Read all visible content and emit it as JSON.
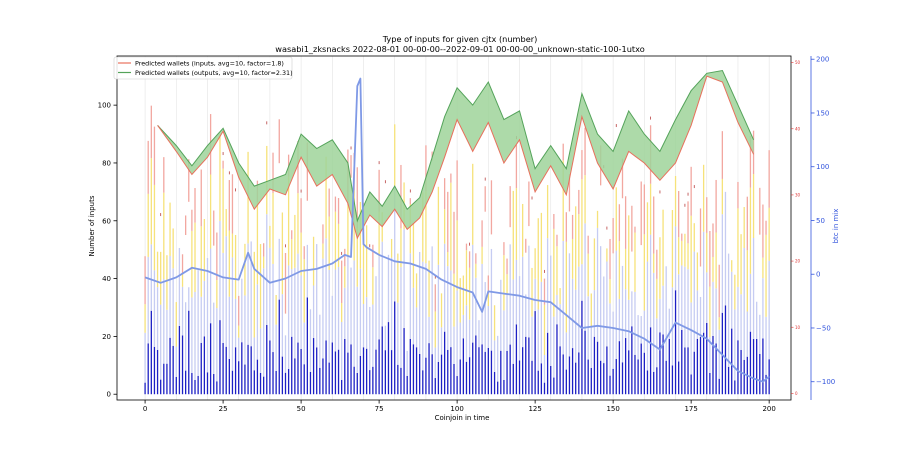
{
  "title": "Type of inputs for given cjtx (number)",
  "subtitle": "wasabi1_zksnacks 2022-08-01 00-00-00--2022-09-01 00-00-00_unknown-static-100-1utxo",
  "chart_data": {
    "type": "bar",
    "xlabel": "Coinjoin in time",
    "ylabel": "Number of inputs",
    "y2label": "btc in mix",
    "xlim": [
      -9,
      207
    ],
    "ylim": [
      -2,
      117
    ],
    "y2lim": [
      -117,
      203
    ],
    "y3lim": [
      -1,
      51
    ],
    "xticks": [
      0,
      25,
      50,
      75,
      100,
      125,
      150,
      175,
      200
    ],
    "yticks": [
      0,
      20,
      40,
      60,
      80,
      100
    ],
    "y2ticks": [
      -100,
      -50,
      0,
      50,
      100,
      150,
      200
    ],
    "y2tick_labels": [
      "−100",
      "−50",
      "0",
      "50",
      "100",
      "150",
      "200"
    ],
    "y3ticks": [
      0,
      10,
      20,
      30,
      40,
      50
    ],
    "grid": "vertical",
    "legend_position": "upper-left",
    "legend": [
      {
        "name": "Predicted wallets (inputs, avg=10, factor=1.8)",
        "color": "#e8705c"
      },
      {
        "name": "Predicted wallets (outputs, avg=10, factor=2.31)",
        "color": "#54a35a"
      }
    ],
    "colors": {
      "bar_blue": "#1c1fc4",
      "bar_lightblue": "#c6ccf2",
      "bar_yellow": "#f6e27a",
      "bar_pink": "#f2a7a0",
      "bar_red": "#b84040",
      "btc_line": "#7f99e6",
      "inputs_line": "#e8705c",
      "outputs_line": "#54a35a",
      "fill": "#9fd39a",
      "axis_blue": "#3355dd",
      "axis_red": "#dd3333"
    },
    "series_wallets": {
      "x": [
        4,
        10,
        15,
        20,
        25,
        30,
        35,
        40,
        45,
        50,
        55,
        60,
        65,
        68,
        72,
        76,
        80,
        84,
        88,
        92,
        96,
        100,
        105,
        110,
        115,
        120,
        125,
        130,
        135,
        140,
        145,
        150,
        155,
        160,
        165,
        170,
        175,
        180,
        185,
        190,
        195
      ],
      "inputs": [
        93,
        84,
        76,
        82,
        91,
        75,
        64,
        71,
        69,
        82,
        72,
        76,
        66,
        54,
        62,
        58,
        64,
        57,
        61,
        70,
        82,
        95,
        84,
        94,
        80,
        88,
        70,
        79,
        69,
        96,
        80,
        71,
        84,
        80,
        74,
        80,
        93,
        110,
        108,
        94,
        83
      ],
      "outputs": [
        93,
        86,
        79,
        86,
        92,
        80,
        72,
        74,
        76,
        90,
        85,
        88,
        80,
        60,
        70,
        65,
        72,
        64,
        68,
        82,
        96,
        106,
        100,
        108,
        95,
        98,
        78,
        86,
        78,
        104,
        90,
        84,
        98,
        90,
        84,
        95,
        105,
        111,
        112,
        100,
        88
      ]
    },
    "series_btc": {
      "x": [
        0,
        5,
        10,
        15,
        20,
        25,
        30,
        33,
        35,
        40,
        45,
        50,
        55,
        60,
        64,
        66,
        68,
        69,
        70,
        71,
        75,
        80,
        85,
        90,
        95,
        100,
        105,
        108,
        110,
        115,
        120,
        125,
        130,
        135,
        140,
        145,
        150,
        155,
        160,
        165,
        170,
        175,
        180,
        185,
        190,
        195,
        198,
        200
      ],
      "values": [
        -3,
        -8,
        -3,
        6,
        3,
        -3,
        -5,
        20,
        5,
        -8,
        -4,
        3,
        5,
        10,
        18,
        16,
        175,
        182,
        28,
        25,
        18,
        12,
        10,
        5,
        -5,
        -12,
        -17,
        -35,
        -16,
        -18,
        -20,
        -24,
        -26,
        -38,
        -50,
        -48,
        -50,
        -53,
        -60,
        -70,
        -45,
        -52,
        -60,
        -75,
        -90,
        -97,
        -100,
        -95
      ]
    }
  }
}
